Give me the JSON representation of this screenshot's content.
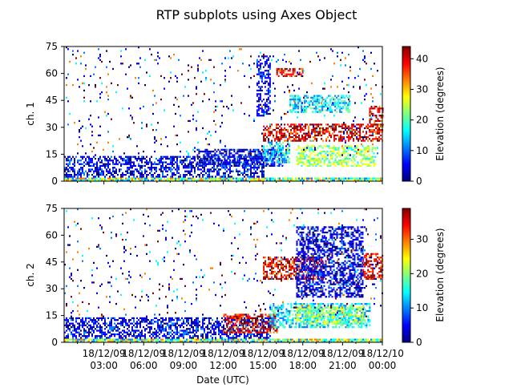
{
  "figure": {
    "title": "RTP subplots using Axes Object",
    "xlabel": "Date (UTC)",
    "colors": {
      "frame": "#000000",
      "background": "#ffffff"
    },
    "colormap": [
      "#00007f",
      "#0000ff",
      "#007fff",
      "#00ffff",
      "#7fff7f",
      "#ffff00",
      "#ff7f00",
      "#ff0000",
      "#7f0000"
    ]
  },
  "chart_data": [
    {
      "type": "heatmap",
      "panel": "ch. 1",
      "ylabel": "ch. 1",
      "ylim": [
        0,
        75
      ],
      "yticks": [
        0,
        15,
        30,
        45,
        60,
        75
      ],
      "xlim": [
        "2018-12-09 00:00",
        "2018-12-10 00:00"
      ],
      "xtick_labels": [],
      "colorbar": {
        "label": "Elevation (degrees)",
        "range": [
          0,
          44
        ],
        "ticks": [
          0,
          10,
          20,
          30,
          40
        ]
      },
      "bands": [
        {
          "t0": 0.0,
          "t1": 24.0,
          "g0": 0,
          "g1": 2,
          "c": "mix_low"
        },
        {
          "t0": 0.0,
          "t1": 15.0,
          "g0": 2,
          "g1": 14,
          "c": "blue"
        },
        {
          "t0": 10.0,
          "t1": 16.5,
          "g0": 8,
          "g1": 18,
          "c": "blue"
        },
        {
          "t0": 15.0,
          "t1": 17.0,
          "g0": 10,
          "g1": 22,
          "c": "cyan"
        },
        {
          "t0": 17.5,
          "t1": 23.5,
          "g0": 8,
          "g1": 20,
          "c": "yellowgreen"
        },
        {
          "t0": 15.0,
          "t1": 24.0,
          "g0": 22,
          "g1": 32,
          "c": "red"
        },
        {
          "t0": 23.0,
          "t1": 24.0,
          "g0": 30,
          "g1": 42,
          "c": "red"
        },
        {
          "t0": 17.0,
          "t1": 21.5,
          "g0": 38,
          "g1": 48,
          "c": "cyan"
        },
        {
          "t0": 16.0,
          "t1": 18.0,
          "g0": 58,
          "g1": 63,
          "c": "red"
        },
        {
          "t0": 14.5,
          "t1": 15.5,
          "g0": 36,
          "g1": 70,
          "c": "blue"
        },
        {
          "t0": 0.0,
          "t1": 24.0,
          "g0": 14,
          "g1": 75,
          "c": "sparse"
        }
      ]
    },
    {
      "type": "heatmap",
      "panel": "ch. 2",
      "ylabel": "ch. 2",
      "ylim": [
        0,
        75
      ],
      "yticks": [
        0,
        15,
        30,
        45,
        60,
        75
      ],
      "xlim": [
        "2018-12-09 00:00",
        "2018-12-10 00:00"
      ],
      "xtick_labels": [
        "18/12/09\n03:00",
        "18/12/09\n06:00",
        "18/12/09\n09:00",
        "18/12/09\n12:00",
        "18/12/09\n15:00",
        "18/12/09\n18:00",
        "18/12/09\n21:00",
        "18/12/10\n00:00"
      ],
      "xtick_hours": [
        3,
        6,
        9,
        12,
        15,
        18,
        21,
        24
      ],
      "colorbar": {
        "label": "Elevation (degrees)",
        "range": [
          0,
          39
        ],
        "ticks": [
          0,
          10,
          20,
          30
        ]
      },
      "bands": [
        {
          "t0": 0.0,
          "t1": 24.0,
          "g0": 0,
          "g1": 2,
          "c": "mix_low"
        },
        {
          "t0": 0.0,
          "t1": 15.5,
          "g0": 2,
          "g1": 14,
          "c": "blue"
        },
        {
          "t0": 12.0,
          "t1": 16.0,
          "g0": 5,
          "g1": 16,
          "c": "red"
        },
        {
          "t0": 15.5,
          "t1": 23.0,
          "g0": 8,
          "g1": 22,
          "c": "cyan"
        },
        {
          "t0": 17.5,
          "t1": 22.5,
          "g0": 10,
          "g1": 20,
          "c": "yellowgreen"
        },
        {
          "t0": 15.0,
          "t1": 19.5,
          "g0": 35,
          "g1": 48,
          "c": "red"
        },
        {
          "t0": 22.5,
          "t1": 24.0,
          "g0": 35,
          "g1": 50,
          "c": "red"
        },
        {
          "t0": 17.5,
          "t1": 22.5,
          "g0": 25,
          "g1": 65,
          "c": "blue"
        },
        {
          "t0": 0.0,
          "t1": 24.0,
          "g0": 14,
          "g1": 75,
          "c": "sparse"
        }
      ]
    }
  ]
}
